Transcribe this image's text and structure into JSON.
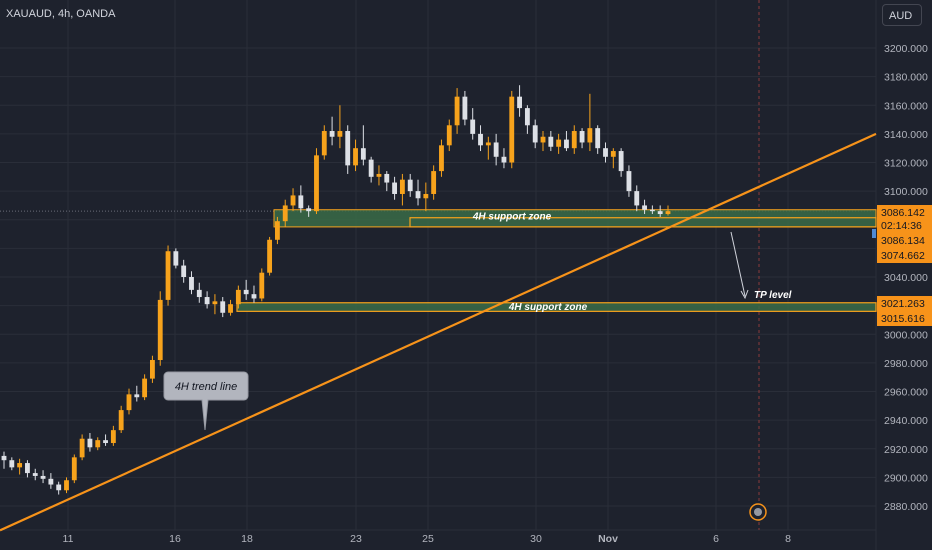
{
  "header": {
    "symbol": "XAUAUD, 4h, OANDA",
    "currency": "AUD"
  },
  "colors": {
    "background": "#1e222d",
    "grid": "#2a2e39",
    "up_candle": "#f7a31c",
    "down_candle": "#dde0e6",
    "trend_line": "#f7931a",
    "zone_fill": "#3a6b48",
    "zone_border": "#f7a31c",
    "axis_text": "#b2b5be"
  },
  "chart_data": {
    "type": "candlestick",
    "y_ticks": [
      "2880.000",
      "2900.000",
      "2920.000",
      "2940.000",
      "2960.000",
      "2980.000",
      "3000.000",
      "3020.000",
      "3040.000",
      "3060.000",
      "3080.000",
      "3100.000",
      "3120.000",
      "3140.000",
      "3160.000",
      "3180.000",
      "3200.000"
    ],
    "x_ticks": [
      "11",
      "16",
      "18",
      "23",
      "25",
      "30",
      "Nov",
      "6",
      "8"
    ],
    "ylim": [
      2870,
      3212
    ],
    "price_labels": [
      "3086.142",
      "02:14:36",
      "3086.134",
      "3074.662",
      "3021.263",
      "3015.616"
    ],
    "annotations": {
      "trend_line_label": "4H trend line",
      "upper_zone_label": "4H support zone",
      "lower_zone_label": "4H support zone",
      "tp_label": "TP level"
    },
    "zones": [
      {
        "name": "upper",
        "top": 3087,
        "bottom": 3075
      },
      {
        "name": "lower",
        "top": 3022,
        "bottom": 3016
      }
    ],
    "trend_line": {
      "from": 2863,
      "to": 3140
    },
    "candles": [
      [
        2915,
        2918,
        2906,
        2912
      ],
      [
        2912,
        2914,
        2905,
        2907
      ],
      [
        2907,
        2913,
        2902,
        2910
      ],
      [
        2910,
        2912,
        2900,
        2903
      ],
      [
        2903,
        2906,
        2898,
        2901
      ],
      [
        2901,
        2905,
        2896,
        2899
      ],
      [
        2899,
        2903,
        2892,
        2895
      ],
      [
        2895,
        2897,
        2888,
        2891
      ],
      [
        2891,
        2900,
        2889,
        2898
      ],
      [
        2898,
        2916,
        2896,
        2914
      ],
      [
        2914,
        2930,
        2912,
        2927
      ],
      [
        2927,
        2931,
        2918,
        2921
      ],
      [
        2921,
        2928,
        2919,
        2926
      ],
      [
        2926,
        2930,
        2922,
        2924
      ],
      [
        2924,
        2936,
        2922,
        2933
      ],
      [
        2933,
        2950,
        2931,
        2947
      ],
      [
        2947,
        2962,
        2944,
        2958
      ],
      [
        2958,
        2964,
        2953,
        2956
      ],
      [
        2956,
        2972,
        2954,
        2969
      ],
      [
        2969,
        2985,
        2966,
        2982
      ],
      [
        2982,
        3030,
        2978,
        3024
      ],
      [
        3024,
        3062,
        3020,
        3058
      ],
      [
        3058,
        3060,
        3046,
        3048
      ],
      [
        3048,
        3052,
        3036,
        3040
      ],
      [
        3040,
        3044,
        3028,
        3031
      ],
      [
        3031,
        3036,
        3022,
        3026
      ],
      [
        3026,
        3030,
        3018,
        3021
      ],
      [
        3021,
        3028,
        3014,
        3023
      ],
      [
        3023,
        3026,
        3012,
        3015
      ],
      [
        3015,
        3024,
        3013,
        3021
      ],
      [
        3021,
        3034,
        3018,
        3031
      ],
      [
        3031,
        3038,
        3024,
        3028
      ],
      [
        3028,
        3034,
        3022,
        3025
      ],
      [
        3025,
        3046,
        3023,
        3043
      ],
      [
        3043,
        3068,
        3041,
        3066
      ],
      [
        3066,
        3082,
        3063,
        3079
      ],
      [
        3079,
        3094,
        3075,
        3090
      ],
      [
        3090,
        3102,
        3086,
        3097
      ],
      [
        3097,
        3104,
        3085,
        3088
      ],
      [
        3088,
        3090,
        3082,
        3086
      ],
      [
        3086,
        3130,
        3084,
        3125
      ],
      [
        3125,
        3146,
        3122,
        3142
      ],
      [
        3142,
        3152,
        3132,
        3138
      ],
      [
        3138,
        3160,
        3130,
        3142
      ],
      [
        3142,
        3146,
        3112,
        3118
      ],
      [
        3118,
        3136,
        3114,
        3130
      ],
      [
        3130,
        3146,
        3118,
        3122
      ],
      [
        3122,
        3124,
        3106,
        3110
      ],
      [
        3110,
        3118,
        3104,
        3112
      ],
      [
        3112,
        3114,
        3100,
        3106
      ],
      [
        3106,
        3110,
        3094,
        3098
      ],
      [
        3098,
        3112,
        3090,
        3108
      ],
      [
        3108,
        3112,
        3096,
        3100
      ],
      [
        3100,
        3108,
        3090,
        3095
      ],
      [
        3095,
        3106,
        3086,
        3098
      ],
      [
        3098,
        3118,
        3094,
        3114
      ],
      [
        3114,
        3136,
        3110,
        3132
      ],
      [
        3132,
        3150,
        3128,
        3146
      ],
      [
        3146,
        3172,
        3140,
        3166
      ],
      [
        3166,
        3170,
        3146,
        3150
      ],
      [
        3150,
        3158,
        3136,
        3140
      ],
      [
        3140,
        3146,
        3128,
        3132
      ],
      [
        3132,
        3138,
        3122,
        3134
      ],
      [
        3134,
        3140,
        3118,
        3124
      ],
      [
        3124,
        3130,
        3116,
        3120
      ],
      [
        3120,
        3170,
        3116,
        3166
      ],
      [
        3166,
        3174,
        3152,
        3158
      ],
      [
        3158,
        3160,
        3140,
        3146
      ],
      [
        3146,
        3150,
        3130,
        3134
      ],
      [
        3134,
        3142,
        3128,
        3138
      ],
      [
        3138,
        3142,
        3128,
        3131
      ],
      [
        3131,
        3140,
        3126,
        3136
      ],
      [
        3136,
        3142,
        3128,
        3130
      ],
      [
        3130,
        3146,
        3126,
        3142
      ],
      [
        3142,
        3144,
        3130,
        3134
      ],
      [
        3134,
        3168,
        3128,
        3144
      ],
      [
        3144,
        3146,
        3126,
        3130
      ],
      [
        3130,
        3134,
        3120,
        3124
      ],
      [
        3124,
        3130,
        3116,
        3128
      ],
      [
        3128,
        3130,
        3110,
        3114
      ],
      [
        3114,
        3118,
        3096,
        3100
      ],
      [
        3100,
        3104,
        3086,
        3090
      ],
      [
        3090,
        3094,
        3084,
        3087
      ],
      [
        3087,
        3090,
        3084,
        3086
      ],
      [
        3086,
        3090,
        3082,
        3084
      ],
      [
        3084,
        3090,
        3083,
        3086
      ]
    ]
  }
}
